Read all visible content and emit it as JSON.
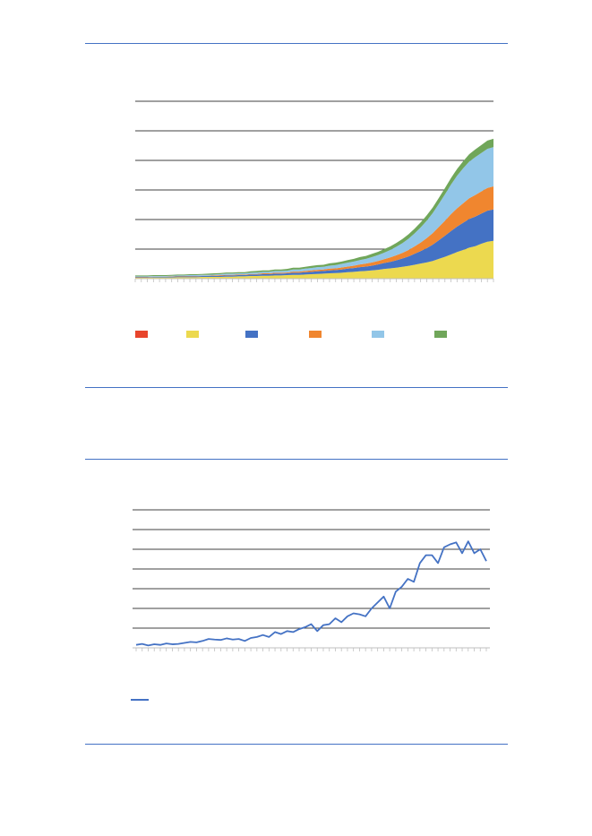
{
  "colors": {
    "rule": "#4472c4",
    "grid": "#000000",
    "axis": "#bfbfbf"
  },
  "chart_data": [
    {
      "type": "area",
      "stacked": true,
      "title": "",
      "xlabel": "",
      "ylabel": "",
      "ylim": [
        0,
        6
      ],
      "gridlines": [
        1,
        2,
        3,
        4,
        5,
        6
      ],
      "grid": true,
      "legend_position": "bottom",
      "n_points": 60,
      "series": [
        {
          "color": "#e8452c",
          "values": [
            0,
            0,
            0,
            0,
            0,
            0,
            0,
            0,
            0,
            0,
            0,
            0,
            0,
            0,
            0,
            0,
            0,
            0,
            0,
            0,
            0,
            0,
            0,
            0,
            0,
            0,
            0,
            0,
            0,
            0,
            0,
            0,
            0,
            0,
            0,
            0,
            0,
            0,
            0,
            0,
            0,
            0,
            0,
            0,
            0,
            0,
            0,
            0,
            0,
            0,
            0,
            0,
            0,
            0,
            0,
            0,
            0,
            0,
            0,
            0
          ]
        },
        {
          "color": "#ecd94f",
          "values": [
            0.03,
            0.03,
            0.03,
            0.04,
            0.04,
            0.04,
            0.04,
            0.05,
            0.05,
            0.05,
            0.05,
            0.06,
            0.06,
            0.06,
            0.06,
            0.07,
            0.07,
            0.08,
            0.08,
            0.09,
            0.09,
            0.1,
            0.1,
            0.11,
            0.11,
            0.12,
            0.13,
            0.13,
            0.14,
            0.15,
            0.16,
            0.17,
            0.18,
            0.19,
            0.2,
            0.22,
            0.23,
            0.25,
            0.26,
            0.28,
            0.3,
            0.33,
            0.35,
            0.37,
            0.4,
            0.43,
            0.47,
            0.51,
            0.55,
            0.6,
            0.67,
            0.74,
            0.82,
            0.9,
            0.97,
            1.05,
            1.1,
            1.18,
            1.25,
            1.28
          ]
        },
        {
          "color": "#4472c4",
          "values": [
            0.02,
            0.02,
            0.02,
            0.02,
            0.02,
            0.02,
            0.03,
            0.03,
            0.03,
            0.03,
            0.03,
            0.03,
            0.03,
            0.03,
            0.04,
            0.04,
            0.04,
            0.04,
            0.04,
            0.05,
            0.05,
            0.05,
            0.05,
            0.06,
            0.06,
            0.06,
            0.07,
            0.07,
            0.08,
            0.08,
            0.09,
            0.09,
            0.1,
            0.1,
            0.11,
            0.12,
            0.13,
            0.14,
            0.15,
            0.16,
            0.18,
            0.2,
            0.22,
            0.25,
            0.28,
            0.32,
            0.37,
            0.42,
            0.48,
            0.55,
            0.63,
            0.71,
            0.79,
            0.86,
            0.92,
            0.97,
            1.0,
            1.02,
            1.05,
            1.06
          ]
        },
        {
          "color": "#f0862f",
          "values": [
            0.01,
            0.01,
            0.01,
            0.01,
            0.01,
            0.01,
            0.01,
            0.01,
            0.01,
            0.01,
            0.01,
            0.01,
            0.01,
            0.02,
            0.02,
            0.02,
            0.02,
            0.02,
            0.02,
            0.02,
            0.02,
            0.03,
            0.03,
            0.03,
            0.03,
            0.03,
            0.04,
            0.04,
            0.04,
            0.05,
            0.05,
            0.05,
            0.06,
            0.06,
            0.07,
            0.07,
            0.08,
            0.09,
            0.1,
            0.11,
            0.12,
            0.13,
            0.15,
            0.17,
            0.19,
            0.22,
            0.25,
            0.29,
            0.34,
            0.39,
            0.45,
            0.51,
            0.57,
            0.62,
            0.66,
            0.7,
            0.73,
            0.75,
            0.77,
            0.78
          ]
        },
        {
          "color": "#92c6e8",
          "values": [
            0.02,
            0.02,
            0.02,
            0.02,
            0.02,
            0.02,
            0.02,
            0.02,
            0.02,
            0.03,
            0.03,
            0.03,
            0.03,
            0.03,
            0.03,
            0.04,
            0.04,
            0.04,
            0.04,
            0.04,
            0.05,
            0.05,
            0.05,
            0.06,
            0.06,
            0.06,
            0.07,
            0.07,
            0.08,
            0.08,
            0.09,
            0.09,
            0.1,
            0.11,
            0.12,
            0.13,
            0.14,
            0.15,
            0.16,
            0.18,
            0.2,
            0.22,
            0.25,
            0.29,
            0.33,
            0.38,
            0.44,
            0.51,
            0.59,
            0.68,
            0.78,
            0.89,
            1.0,
            1.1,
            1.18,
            1.24,
            1.28,
            1.3,
            1.32,
            1.33
          ]
        },
        {
          "color": "#70a65a",
          "values": [
            0.03,
            0.03,
            0.03,
            0.03,
            0.03,
            0.03,
            0.03,
            0.03,
            0.03,
            0.03,
            0.03,
            0.03,
            0.04,
            0.04,
            0.04,
            0.04,
            0.04,
            0.04,
            0.04,
            0.05,
            0.05,
            0.05,
            0.05,
            0.05,
            0.05,
            0.06,
            0.06,
            0.06,
            0.06,
            0.07,
            0.07,
            0.07,
            0.08,
            0.08,
            0.08,
            0.09,
            0.09,
            0.1,
            0.1,
            0.11,
            0.11,
            0.12,
            0.12,
            0.13,
            0.14,
            0.15,
            0.16,
            0.17,
            0.18,
            0.19,
            0.2,
            0.21,
            0.22,
            0.23,
            0.24,
            0.25,
            0.26,
            0.27,
            0.28,
            0.28
          ]
        }
      ]
    },
    {
      "type": "line",
      "title": "",
      "xlabel": "",
      "ylabel": "",
      "ylim": [
        0,
        7
      ],
      "gridlines": [
        1,
        2,
        3,
        4,
        5,
        6,
        7
      ],
      "grid": true,
      "legend_position": "bottom",
      "series": [
        {
          "color": "#4472c4",
          "values": [
            0.15,
            0.2,
            0.12,
            0.18,
            0.15,
            0.22,
            0.18,
            0.2,
            0.25,
            0.3,
            0.28,
            0.35,
            0.45,
            0.42,
            0.4,
            0.48,
            0.42,
            0.45,
            0.35,
            0.5,
            0.55,
            0.65,
            0.55,
            0.8,
            0.7,
            0.85,
            0.8,
            0.95,
            1.05,
            1.2,
            0.85,
            1.15,
            1.2,
            1.5,
            1.3,
            1.6,
            1.75,
            1.7,
            1.6,
            2.0,
            2.3,
            2.6,
            2.0,
            2.85,
            3.1,
            3.5,
            3.35,
            4.3,
            4.7,
            4.7,
            4.3,
            5.1,
            5.25,
            5.35,
            4.8,
            5.4,
            4.8,
            5.0,
            4.4
          ]
        }
      ]
    }
  ]
}
